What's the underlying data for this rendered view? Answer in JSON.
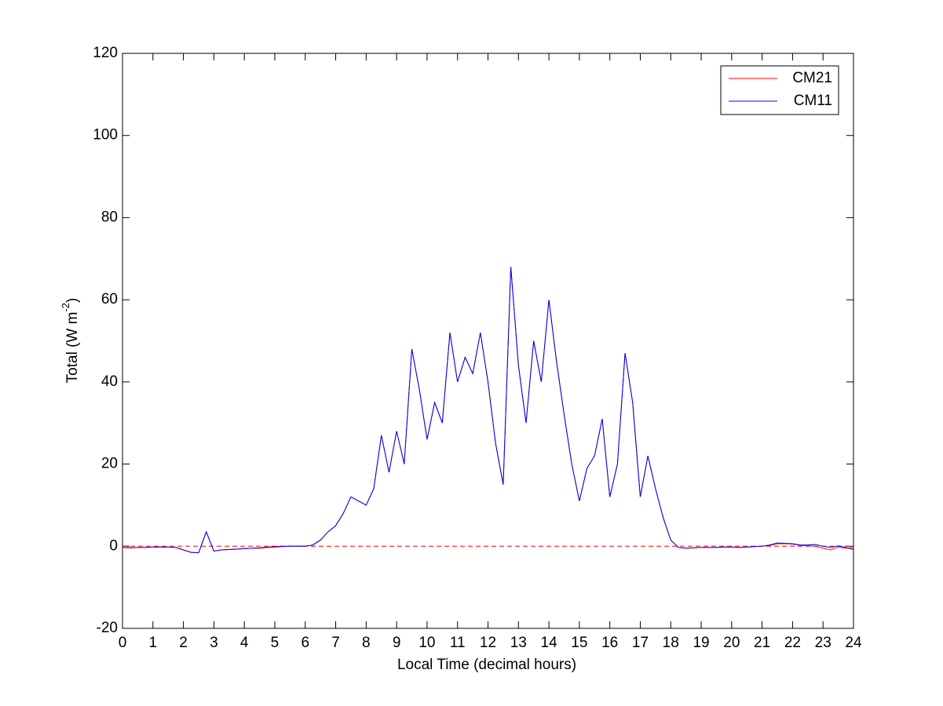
{
  "chart_data": {
    "type": "line",
    "xlabel": "Local Time (decimal hours)",
    "ylabel": {
      "text": "Total (W m",
      "superscript": "-2",
      "suffix": ")"
    },
    "x": [
      0,
      0.25,
      0.5,
      0.75,
      1,
      1.25,
      1.5,
      1.75,
      2,
      2.25,
      2.5,
      2.75,
      3,
      3.25,
      3.5,
      3.75,
      4,
      4.25,
      4.5,
      4.75,
      5,
      5.25,
      5.5,
      5.75,
      6,
      6.25,
      6.5,
      6.75,
      7,
      7.25,
      7.5,
      7.75,
      8,
      8.25,
      8.5,
      8.75,
      9,
      9.25,
      9.5,
      9.75,
      10,
      10.25,
      10.5,
      10.75,
      11,
      11.25,
      11.5,
      11.75,
      12,
      12.25,
      12.5,
      12.75,
      13,
      13.25,
      13.5,
      13.75,
      14,
      14.25,
      14.5,
      14.75,
      15,
      15.25,
      15.5,
      15.75,
      16,
      16.25,
      16.5,
      16.75,
      17,
      17.25,
      17.5,
      17.75,
      18,
      18.25,
      18.5,
      18.75,
      19,
      19.25,
      19.5,
      19.75,
      20,
      20.25,
      20.5,
      20.75,
      21,
      21.25,
      21.5,
      21.75,
      22,
      22.25,
      22.5,
      22.75,
      23,
      23.25,
      23.5,
      23.75,
      24
    ],
    "series": [
      {
        "name": "CM21",
        "color": "#ff0000",
        "values": [
          -0.3,
          -0.4,
          -0.3,
          -0.3,
          -0.2,
          -0.2,
          -0.2,
          -0.3,
          -0.9,
          -1.5,
          -1.6,
          3.5,
          -1.2,
          -0.9,
          -0.8,
          -0.7,
          -0.6,
          -0.5,
          -0.4,
          -0.2,
          -0.1,
          0,
          0,
          0,
          0,
          0.3,
          1.5,
          3.5,
          5,
          8,
          12,
          11,
          10,
          14,
          27,
          18,
          28,
          20,
          48,
          38,
          26,
          35,
          30,
          52,
          40,
          46,
          42,
          52,
          40,
          25,
          15,
          68,
          44,
          30,
          50,
          40,
          60,
          45,
          32,
          20,
          11,
          19,
          22,
          31,
          12,
          20,
          47,
          35,
          12,
          22,
          14,
          7,
          1.5,
          -0.3,
          -0.5,
          -0.4,
          -0.3,
          -0.3,
          -0.3,
          -0.2,
          -0.2,
          -0.3,
          -0.2,
          -0.1,
          0,
          0.2,
          0.6,
          0.6,
          0.5,
          0.2,
          0.1,
          0,
          -0.5,
          -0.9,
          -0.2,
          -0.5,
          -0.3
        ]
      },
      {
        "name": "CM11",
        "color": "#0000ff",
        "values": [
          -0.3,
          -0.4,
          -0.3,
          -0.3,
          -0.2,
          -0.2,
          -0.2,
          -0.3,
          -0.9,
          -1.5,
          -1.6,
          3.5,
          -1.2,
          -0.9,
          -0.8,
          -0.7,
          -0.6,
          -0.5,
          -0.5,
          -0.3,
          -0.2,
          -0.1,
          0,
          0,
          0,
          0.3,
          1.5,
          3.5,
          5,
          8,
          12,
          11,
          10,
          14,
          27,
          18,
          28,
          20,
          48,
          38,
          26,
          35,
          30,
          52,
          40,
          46,
          42,
          52,
          40,
          25,
          15,
          68,
          44,
          30,
          50,
          40,
          60,
          45,
          32,
          20,
          11,
          19,
          22,
          31,
          12,
          20,
          47,
          35,
          12,
          22,
          14,
          7,
          1.5,
          -0.3,
          -0.5,
          -0.4,
          -0.3,
          -0.3,
          -0.3,
          -0.2,
          -0.2,
          -0.3,
          -0.2,
          -0.1,
          0,
          0.3,
          0.8,
          0.7,
          0.6,
          0.3,
          0.3,
          0.4,
          0,
          -0.3,
          0.1,
          -0.3,
          -0.8
        ]
      }
    ],
    "reference_line": {
      "y": 0,
      "color": "#ff0000",
      "style": "dashed"
    },
    "xlim": [
      0,
      24
    ],
    "xticks": [
      0,
      1,
      2,
      3,
      4,
      5,
      6,
      7,
      8,
      9,
      10,
      11,
      12,
      13,
      14,
      15,
      16,
      17,
      18,
      19,
      20,
      21,
      22,
      23,
      24
    ],
    "ylim": [
      -20,
      120
    ],
    "yticks": [
      -20,
      0,
      20,
      40,
      60,
      80,
      100,
      120
    ],
    "grid": false,
    "legend": "top-right"
  }
}
